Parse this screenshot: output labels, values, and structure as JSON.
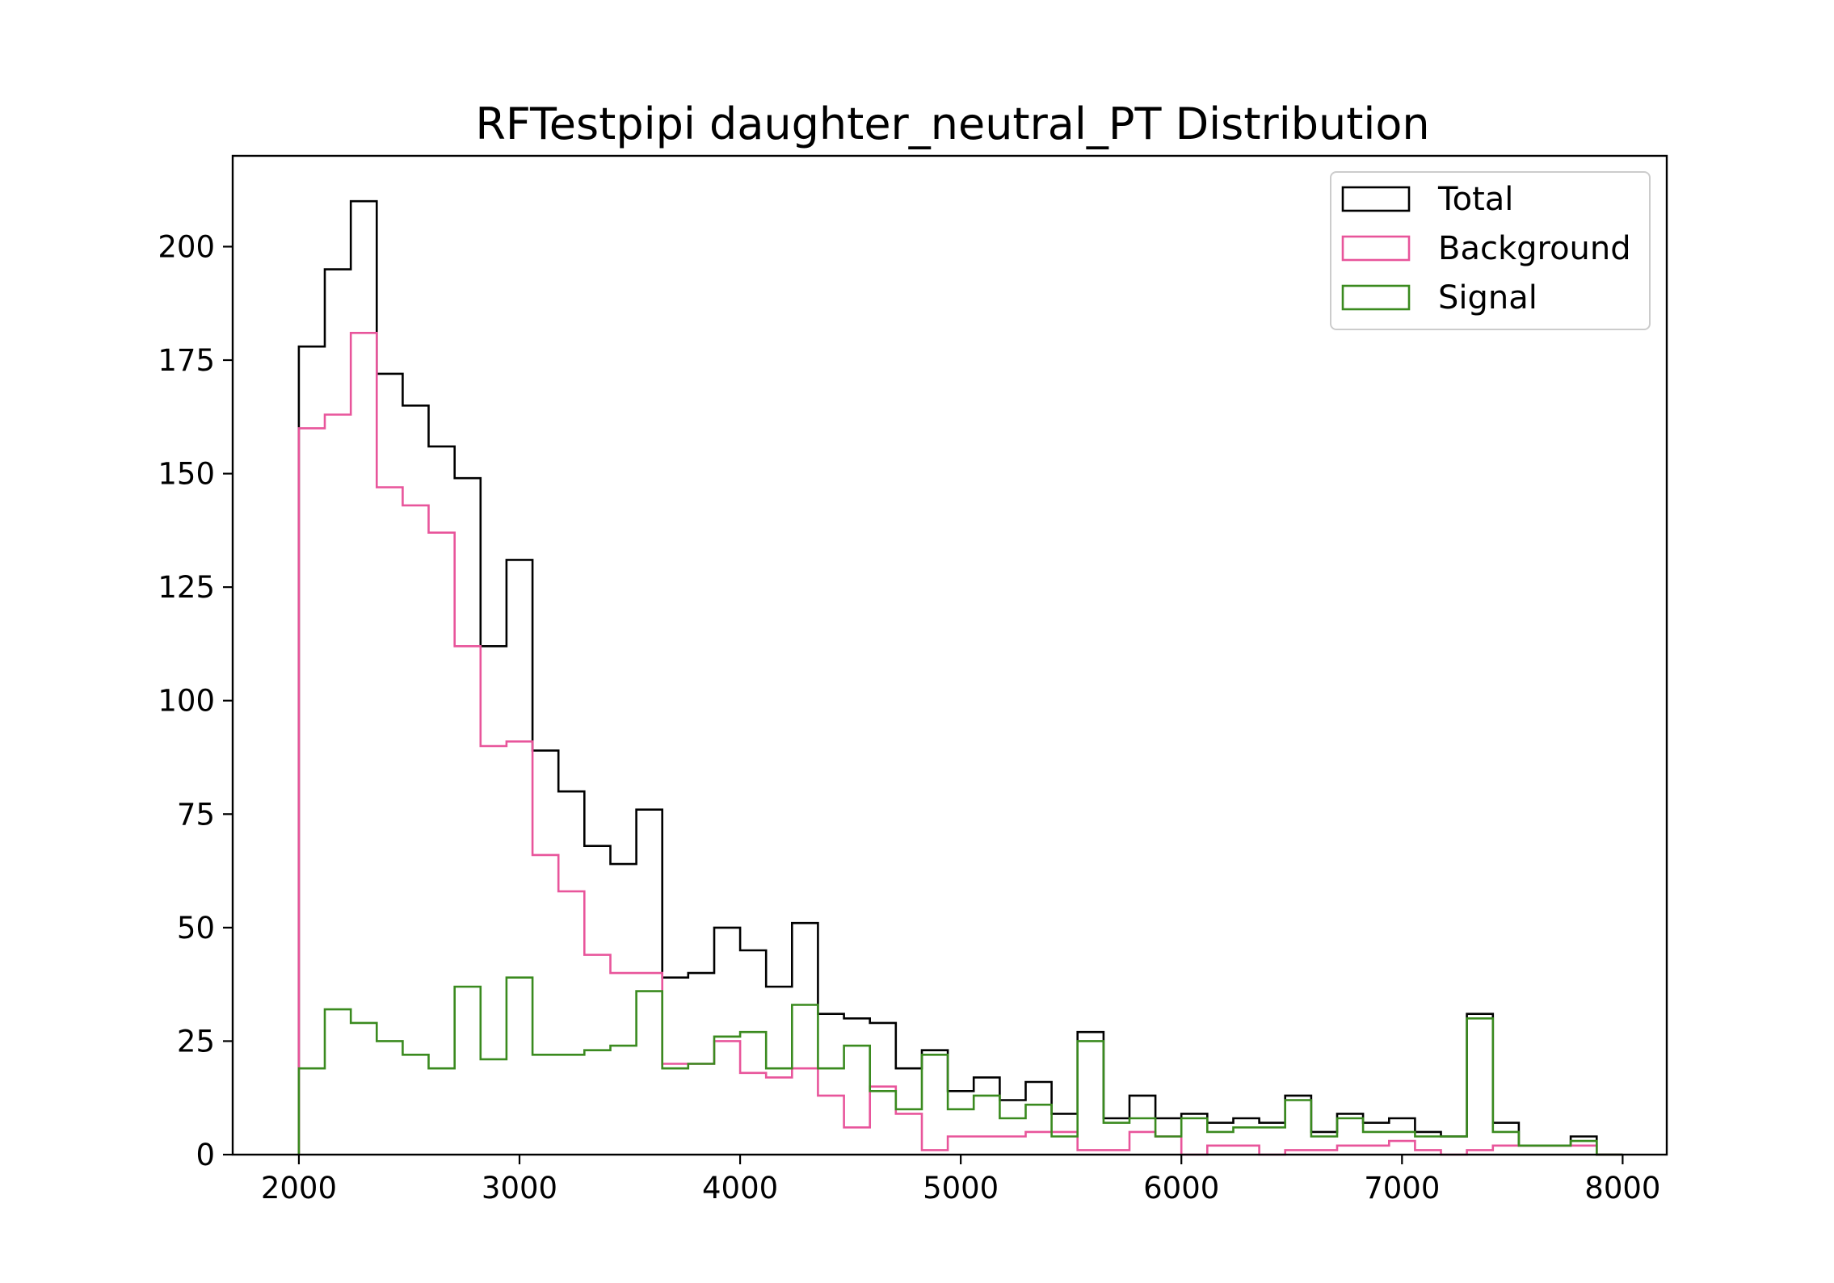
{
  "chart_data": {
    "type": "histogram-step",
    "title": "RFTestpipi daughter_neutral_PT Distribution",
    "xlabel": "",
    "ylabel": "",
    "xlim": [
      1700,
      8200
    ],
    "ylim": [
      0,
      220
    ],
    "x_ticks": [
      2000,
      3000,
      4000,
      5000,
      6000,
      7000,
      8000
    ],
    "y_ticks": [
      0,
      25,
      50,
      75,
      100,
      125,
      150,
      175,
      200
    ],
    "legend_position": "top-right",
    "bin_edges": [
      2000,
      2117.6,
      2235.3,
      2352.9,
      2470.6,
      2588.2,
      2705.9,
      2823.5,
      2941.2,
      3058.8,
      3176.5,
      3294.1,
      3411.8,
      3529.4,
      3647.1,
      3764.7,
      3882.4,
      4000,
      4117.6,
      4235.3,
      4352.9,
      4470.6,
      4588.2,
      4705.9,
      4823.5,
      4941.2,
      5058.8,
      5176.5,
      5294.1,
      5411.8,
      5529.4,
      5647.1,
      5764.7,
      5882.4,
      6000,
      6117.6,
      6235.3,
      6352.9,
      6470.6,
      6588.2,
      6705.9,
      6823.5,
      6941.2,
      7058.8,
      7176.5,
      7294.1,
      7411.8,
      7529.4,
      7647.1,
      7764.7,
      7882.4,
      8000
    ],
    "series": [
      {
        "name": "Total",
        "color": "#000000",
        "values": [
          178,
          195,
          210,
          172,
          165,
          156,
          149,
          112,
          131,
          89,
          80,
          68,
          64,
          76,
          39,
          40,
          50,
          45,
          37,
          51,
          31,
          30,
          29,
          19,
          23,
          14,
          17,
          12,
          16,
          9,
          27,
          8,
          13,
          8,
          9,
          7,
          8,
          7,
          13,
          5,
          9,
          7,
          8,
          5,
          4,
          31,
          7,
          2,
          2,
          4,
          0
        ]
      },
      {
        "name": "Background",
        "color": "#e8559b",
        "values": [
          160,
          163,
          181,
          147,
          143,
          137,
          112,
          90,
          91,
          66,
          58,
          44,
          40,
          40,
          20,
          20,
          25,
          18,
          17,
          19,
          13,
          6,
          15,
          9,
          1,
          4,
          4,
          4,
          5,
          5,
          1,
          1,
          5,
          4,
          0,
          2,
          2,
          0,
          1,
          1,
          2,
          2,
          3,
          1,
          0,
          1,
          2,
          2,
          2,
          2,
          0
        ]
      },
      {
        "name": "Signal",
        "color": "#3a8a1f",
        "values": [
          19,
          32,
          29,
          25,
          22,
          19,
          37,
          21,
          39,
          22,
          22,
          23,
          24,
          36,
          19,
          20,
          26,
          27,
          19,
          33,
          19,
          24,
          14,
          10,
          22,
          10,
          13,
          8,
          11,
          4,
          25,
          7,
          8,
          4,
          8,
          5,
          6,
          6,
          12,
          4,
          8,
          5,
          5,
          4,
          4,
          30,
          5,
          2,
          2,
          3,
          0
        ]
      }
    ]
  }
}
